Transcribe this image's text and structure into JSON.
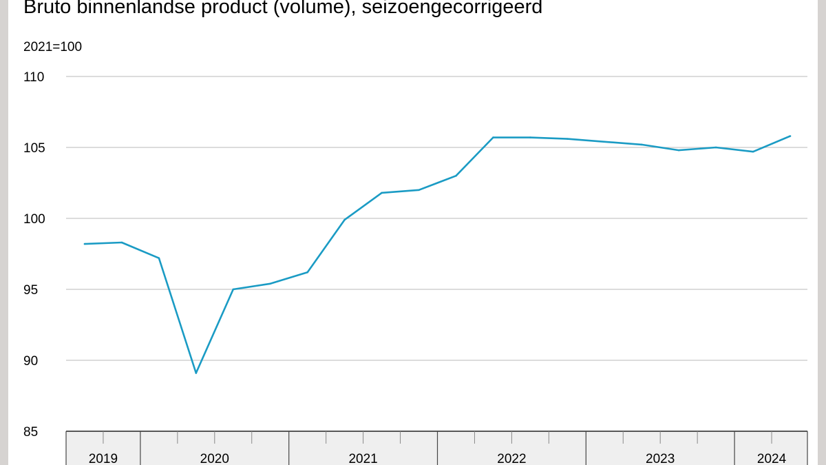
{
  "chart_data": {
    "type": "line",
    "title": "Bruto binnenlandse product (volume), seizoengecorrigeerd",
    "subtitle": "2021=100",
    "xlabel": "",
    "ylabel": "",
    "ylim": [
      85,
      110
    ],
    "yticks": [
      "85",
      "90",
      "95",
      "100",
      "105",
      "110"
    ],
    "ytick_values": [
      85,
      90,
      95,
      100,
      105,
      110
    ],
    "grid": true,
    "years": [
      "2019",
      "2020",
      "2021",
      "2022",
      "2023",
      "2024"
    ],
    "quarters_per_year": [
      2,
      4,
      4,
      4,
      4,
      2
    ],
    "x": [
      "2019 Q3",
      "2019 Q4",
      "2020 Q1",
      "2020 Q2",
      "2020 Q3",
      "2020 Q4",
      "2021 Q1",
      "2021 Q2",
      "2021 Q3",
      "2021 Q4",
      "2022 Q1",
      "2022 Q2",
      "2022 Q3",
      "2022 Q4",
      "2023 Q1",
      "2023 Q2",
      "2023 Q3",
      "2023 Q4",
      "2024 Q1",
      "2024 Q2"
    ],
    "series": [
      {
        "color": "#1a9bc4",
        "values": [
          98.2,
          98.3,
          97.2,
          89.1,
          95.0,
          95.4,
          96.2,
          99.9,
          101.8,
          102.0,
          103.0,
          105.7,
          105.7,
          105.6,
          105.4,
          105.2,
          104.8,
          105.0,
          104.7,
          105.8
        ]
      }
    ]
  },
  "colors": {
    "line": "#1a9bc4",
    "grid": "#c8c8c8",
    "axis_band": "#efefef",
    "frame": "#d6d3d1"
  }
}
